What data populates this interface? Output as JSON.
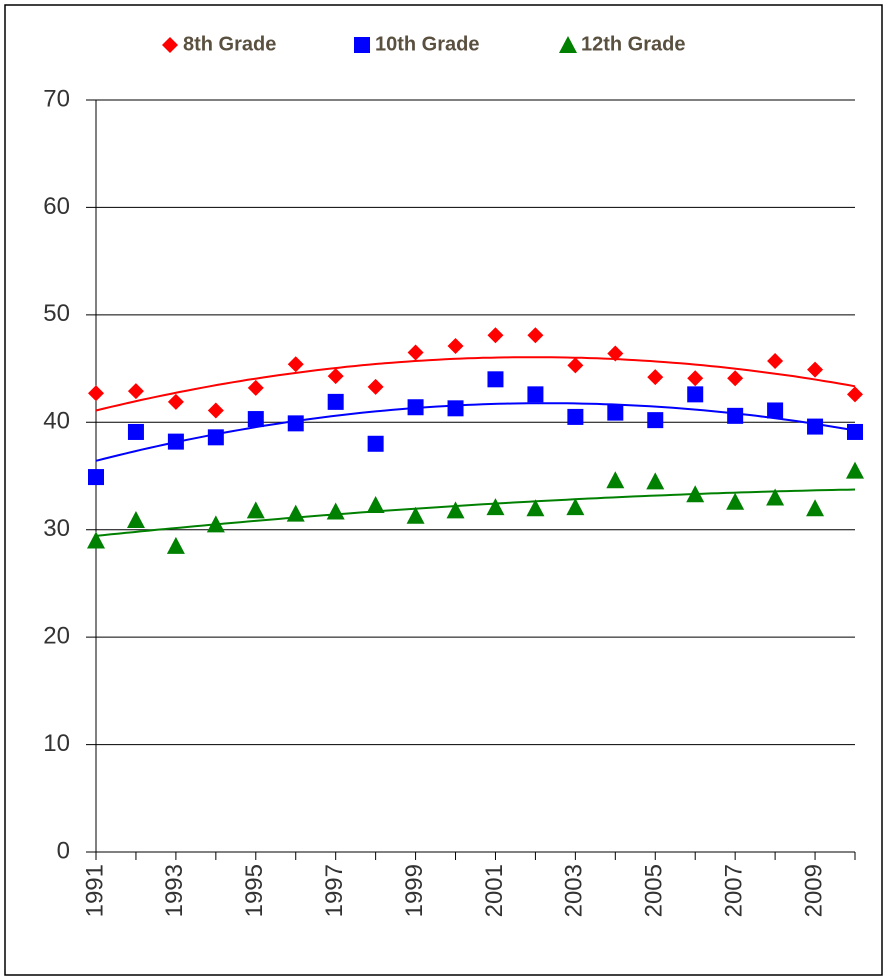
{
  "chart_data": {
    "type": "scatter",
    "x": [
      1991,
      1992,
      1993,
      1994,
      1995,
      1996,
      1997,
      1998,
      1999,
      2000,
      2001,
      2002,
      2003,
      2004,
      2005,
      2006,
      2007,
      2008,
      2009,
      2010
    ],
    "series": [
      {
        "name": "8th Grade",
        "color": "#ff0000",
        "marker": "diamond",
        "values": [
          42.7,
          42.9,
          41.9,
          41.1,
          43.2,
          45.4,
          44.3,
          43.3,
          46.5,
          47.1,
          48.1,
          48.1,
          45.3,
          46.4,
          44.2,
          44.1,
          44.1,
          45.7,
          44.9,
          42.6
        ]
      },
      {
        "name": "10th Grade",
        "color": "#0000ff",
        "marker": "square",
        "values": [
          34.9,
          39.1,
          38.2,
          38.6,
          40.3,
          39.9,
          41.9,
          38.0,
          41.4,
          41.3,
          44.0,
          42.6,
          40.5,
          40.9,
          40.2,
          42.6,
          40.6,
          41.1,
          39.6,
          39.1
        ]
      },
      {
        "name": "12th Grade",
        "color": "#008000",
        "marker": "triangle",
        "values": [
          29.0,
          30.9,
          28.5,
          30.5,
          31.8,
          31.5,
          31.7,
          32.3,
          31.3,
          31.8,
          32.1,
          32.0,
          32.1,
          34.6,
          34.5,
          33.3,
          32.6,
          33.0,
          32.0,
          35.5
        ]
      }
    ],
    "trendline": "polynomial",
    "trendline_order": 2,
    "xlim": [
      1991,
      2010
    ],
    "xticks": [
      1991,
      1993,
      1995,
      1997,
      1999,
      2001,
      2003,
      2005,
      2007,
      2009
    ],
    "ylim": [
      0,
      70
    ],
    "yticks": [
      0,
      10,
      20,
      30,
      40,
      50,
      60,
      70
    ],
    "grid": true,
    "legend": "top"
  }
}
